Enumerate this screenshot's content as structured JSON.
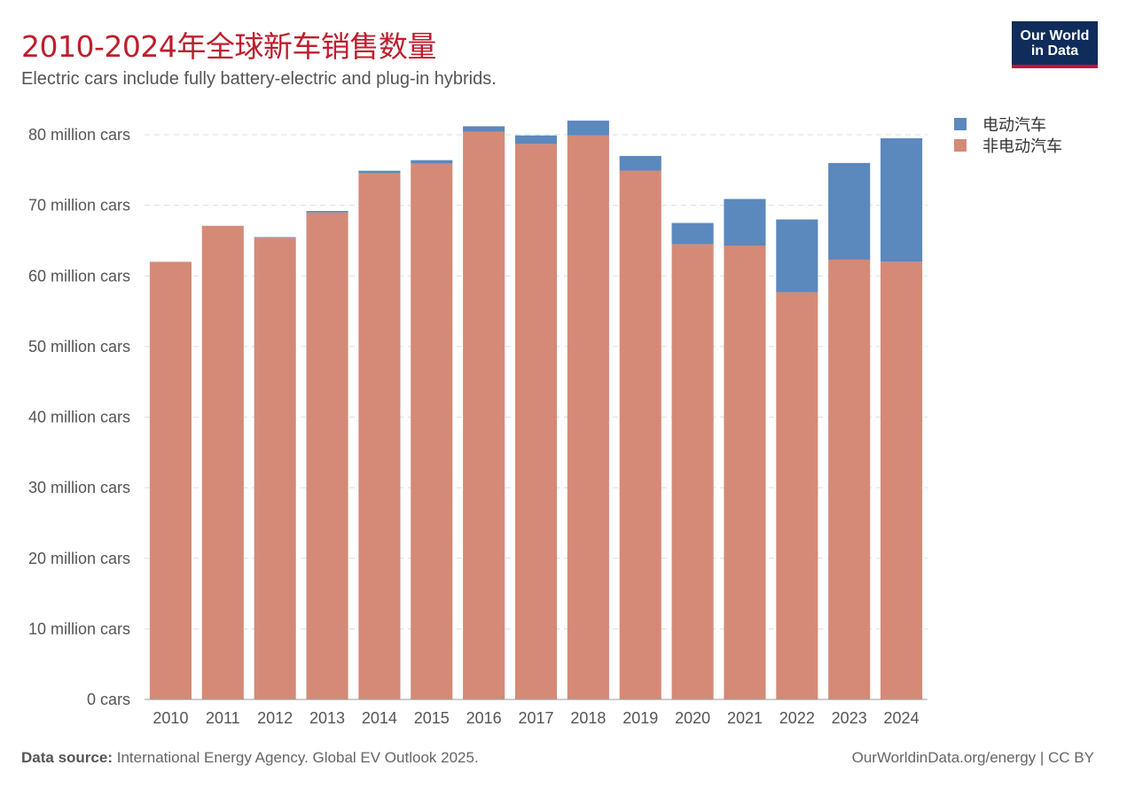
{
  "header": {
    "title": "2010-2024年全球新车销售数量",
    "subtitle": "Electric cars include fully battery-electric and plug-in hybrids."
  },
  "logo": {
    "line1": "Our World",
    "line2": "in Data"
  },
  "footer": {
    "source_label": "Data source:",
    "source_text": "International Energy Agency. Global EV Outlook 2025.",
    "url": "OurWorldinData.org/energy | CC BY"
  },
  "colors": {
    "electric": "#5b88bd",
    "non_electric": "#d48a76",
    "title": "#be1e2d"
  },
  "chart_data": {
    "type": "bar",
    "stacked": true,
    "categories": [
      "2010",
      "2011",
      "2012",
      "2013",
      "2014",
      "2015",
      "2016",
      "2017",
      "2018",
      "2019",
      "2020",
      "2021",
      "2022",
      "2023",
      "2024"
    ],
    "series": [
      {
        "name": "非电动汽车",
        "color": "#d48a76",
        "values": [
          62.0,
          67.1,
          65.4,
          69.0,
          74.6,
          75.9,
          80.4,
          78.7,
          79.9,
          74.9,
          64.5,
          64.3,
          57.7,
          62.3,
          62.0
        ]
      },
      {
        "name": "电动汽车",
        "color": "#5b88bd",
        "values": [
          0.0,
          0.0,
          0.1,
          0.2,
          0.3,
          0.5,
          0.8,
          1.2,
          2.1,
          2.1,
          3.0,
          6.6,
          10.3,
          13.7,
          17.5
        ]
      }
    ],
    "yticks": [
      0,
      10,
      20,
      30,
      40,
      50,
      60,
      70,
      80
    ],
    "ytick_labels": [
      "0 cars",
      "10 million cars",
      "20 million cars",
      "30 million cars",
      "40 million cars",
      "50 million cars",
      "60 million cars",
      "70 million cars",
      "80 million cars"
    ],
    "ylim": [
      0,
      80
    ],
    "grid": true,
    "legend_position": "top-right"
  }
}
